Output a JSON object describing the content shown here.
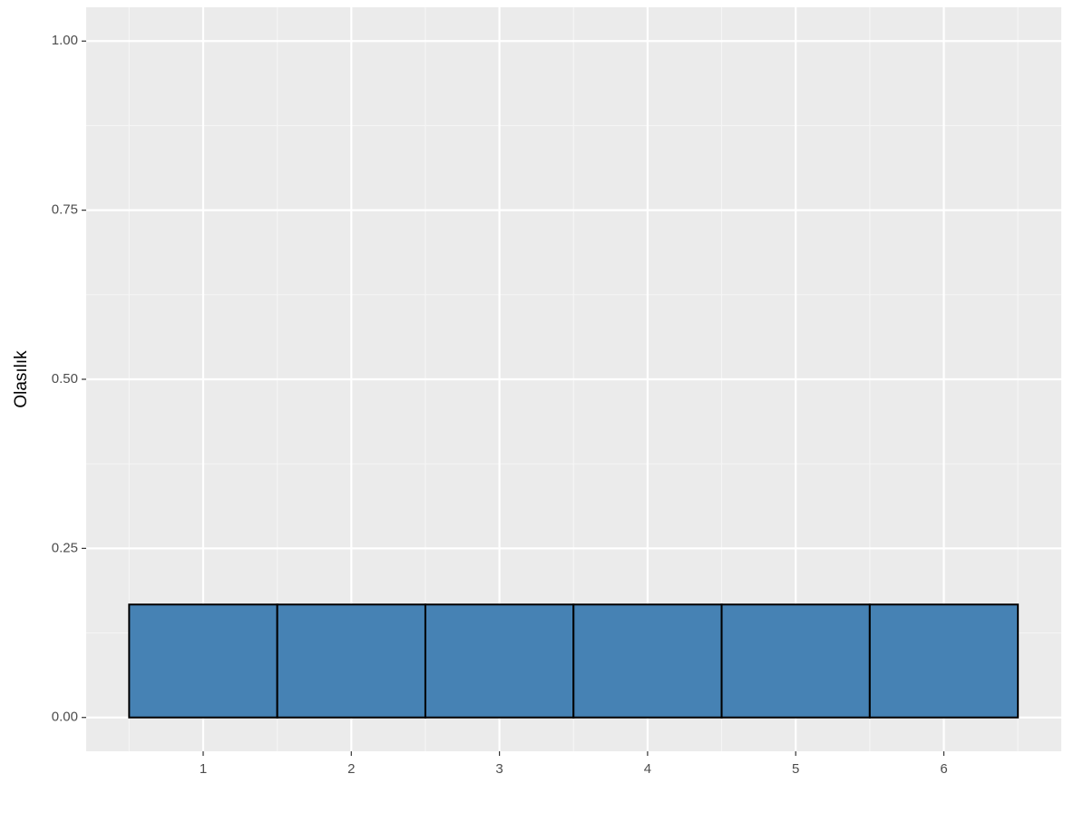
{
  "chart_data": {
    "type": "bar",
    "y_label": "Olasılık",
    "categories": [
      "1",
      "2",
      "3",
      "4",
      "5",
      "6"
    ],
    "values": [
      0.167,
      0.167,
      0.167,
      0.167,
      0.167,
      0.167
    ],
    "color": "#4682b4",
    "ylim": [
      -0.05,
      1.05
    ],
    "yticks": [
      {
        "value": 0,
        "label": "0.00"
      },
      {
        "value": 0.25,
        "label": "0.25"
      },
      {
        "value": 0.5,
        "label": "0.50"
      },
      {
        "value": 0.75,
        "label": "0.75"
      },
      {
        "value": 1,
        "label": "1.00"
      }
    ],
    "grid": true
  }
}
